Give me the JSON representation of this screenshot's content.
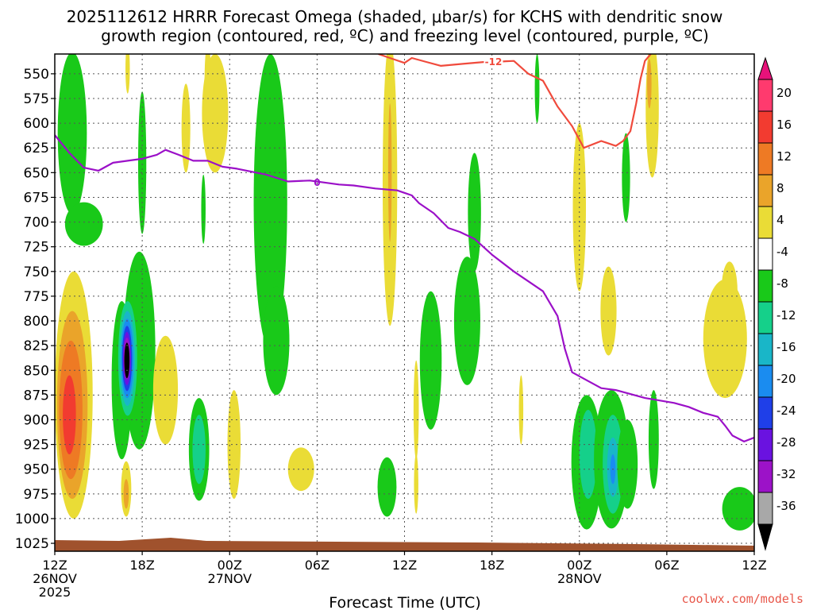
{
  "chart_data": {
    "type": "contour",
    "title_line1": "2025112612 HRRR Forecast Omega (shaded, μbar/s) for KCHS with dendritic snow",
    "title_line2": "growth region (contoured, red, ºC) and freezing level (contoured, purple, ºC)",
    "xlabel": "Forecast Time (UTC)",
    "credit": "coolwx.com/models",
    "x_range": [
      0,
      48
    ],
    "y_range": [
      530,
      1033
    ],
    "y_ticks": [
      550,
      575,
      600,
      625,
      650,
      675,
      700,
      725,
      750,
      775,
      800,
      825,
      850,
      875,
      900,
      925,
      950,
      975,
      1000,
      1025
    ],
    "x_ticks": [
      {
        "hour": 0,
        "lines": [
          "12Z",
          "26NOV",
          "2025"
        ]
      },
      {
        "hour": 6,
        "lines": [
          "18Z"
        ]
      },
      {
        "hour": 12,
        "lines": [
          "00Z",
          "27NOV"
        ]
      },
      {
        "hour": 18,
        "lines": [
          "06Z"
        ]
      },
      {
        "hour": 24,
        "lines": [
          "12Z"
        ]
      },
      {
        "hour": 30,
        "lines": [
          "18Z"
        ]
      },
      {
        "hour": 36,
        "lines": [
          "00Z",
          "28NOV"
        ]
      },
      {
        "hour": 42,
        "lines": [
          "06Z"
        ]
      },
      {
        "hour": 48,
        "lines": [
          "12Z"
        ]
      }
    ],
    "colorbar": {
      "labels": [
        "20",
        "16",
        "12",
        "8",
        "4",
        "-4",
        "-8",
        "-12",
        "-16",
        "-20",
        "-24",
        "-28",
        "-32",
        "-36"
      ],
      "colors": [
        "#ff3a6e",
        "#f23b30",
        "#ee7a24",
        "#eaa42a",
        "#eadc36",
        "#ffffff",
        "#19c919",
        "#15d08a",
        "#19b6c8",
        "#1a8cf0",
        "#1f3fe8",
        "#6a12e0",
        "#9c12c8",
        "#a8a8a8"
      ],
      "top_color": "#e8127a",
      "bottom_color": "#000000"
    },
    "freezing_level": {
      "label": "0",
      "color": "#9b10c8",
      "points": [
        [
          0,
          612
        ],
        [
          1,
          630
        ],
        [
          2,
          645
        ],
        [
          3,
          648
        ],
        [
          4,
          640
        ],
        [
          5,
          638
        ],
        [
          6,
          636
        ],
        [
          7,
          632
        ],
        [
          7.6,
          627
        ],
        [
          8.5,
          632
        ],
        [
          9.5,
          638
        ],
        [
          10.5,
          638
        ],
        [
          11.5,
          644
        ],
        [
          12.5,
          646
        ],
        [
          14.5,
          652
        ],
        [
          16,
          659
        ],
        [
          17.5,
          658
        ],
        [
          18.5,
          660
        ],
        [
          19.5,
          662
        ],
        [
          20.5,
          663
        ],
        [
          22,
          666
        ],
        [
          23.5,
          668
        ],
        [
          24.5,
          673
        ],
        [
          25,
          681
        ],
        [
          26,
          691
        ],
        [
          27,
          706
        ],
        [
          27.8,
          710
        ],
        [
          28.8,
          717
        ],
        [
          30,
          733
        ],
        [
          31.5,
          750
        ],
        [
          32.5,
          760
        ],
        [
          33.5,
          770
        ],
        [
          34.5,
          795
        ],
        [
          35,
          828
        ],
        [
          35.5,
          852
        ],
        [
          36.5,
          860
        ],
        [
          37.5,
          868
        ],
        [
          38.5,
          870
        ],
        [
          40.5,
          878
        ],
        [
          42.5,
          883
        ],
        [
          43.5,
          887
        ],
        [
          44.5,
          893
        ],
        [
          45.5,
          897
        ],
        [
          46,
          906
        ],
        [
          46.5,
          916
        ],
        [
          47.3,
          922
        ],
        [
          48,
          918
        ]
      ]
    },
    "dgz_contour": {
      "label": "-12",
      "color": "#f04a3c",
      "points": [
        [
          22.2,
          530
        ],
        [
          23,
          534
        ],
        [
          24,
          539
        ],
        [
          24.5,
          534
        ],
        [
          25.5,
          538
        ],
        [
          26.5,
          542
        ],
        [
          28,
          540
        ],
        [
          29.5,
          538
        ],
        [
          30,
          538
        ],
        [
          31.5,
          537
        ],
        [
          32.5,
          550
        ],
        [
          33.5,
          557
        ],
        [
          34.5,
          583
        ],
        [
          35.5,
          603
        ],
        [
          36.3,
          625
        ],
        [
          37.5,
          618
        ],
        [
          38.5,
          623
        ],
        [
          39,
          618
        ],
        [
          39.5,
          608
        ],
        [
          39.9,
          580
        ],
        [
          40.2,
          555
        ],
        [
          40.5,
          537
        ],
        [
          40.9,
          530
        ]
      ]
    },
    "omega_shading": [
      {
        "level": -4,
        "color": "#19c919",
        "x": 1.2,
        "y": 610,
        "rx": 1.0,
        "ry": 82
      },
      {
        "level": -4,
        "color": "#19c919",
        "x": 2.0,
        "y": 702,
        "rx": 1.3,
        "ry": 22
      },
      {
        "level": -4,
        "color": "#19c919",
        "x": 6.0,
        "y": 640,
        "rx": 0.28,
        "ry": 72
      },
      {
        "level": -4,
        "color": "#19c919",
        "x": 5.8,
        "y": 830,
        "rx": 1.1,
        "ry": 100
      },
      {
        "level": -4,
        "color": "#19c919",
        "x": 4.6,
        "y": 860,
        "rx": 0.7,
        "ry": 80
      },
      {
        "level": -8,
        "color": "#15d08a",
        "x": 5.0,
        "y": 838,
        "rx": 0.65,
        "ry": 58
      },
      {
        "level": -12,
        "color": "#19b6c8",
        "x": 4.98,
        "y": 838,
        "rx": 0.52,
        "ry": 48
      },
      {
        "level": -16,
        "color": "#1a8cf0",
        "x": 4.97,
        "y": 838,
        "rx": 0.42,
        "ry": 40
      },
      {
        "level": -24,
        "color": "#1f3fe8",
        "x": 4.96,
        "y": 838,
        "rx": 0.34,
        "ry": 33
      },
      {
        "level": -28,
        "color": "#6a12e0",
        "x": 4.95,
        "y": 838,
        "rx": 0.27,
        "ry": 27
      },
      {
        "level": -32,
        "color": "#9c12c8",
        "x": 4.95,
        "y": 838,
        "rx": 0.22,
        "ry": 21
      },
      {
        "level": -36,
        "color": "#000000",
        "x": 4.95,
        "y": 840,
        "rx": 0.18,
        "ry": 18
      },
      {
        "level": -4,
        "color": "#19c919",
        "x": 10.2,
        "y": 687,
        "rx": 0.15,
        "ry": 35
      },
      {
        "level": -4,
        "color": "#19c919",
        "x": 9.9,
        "y": 930,
        "rx": 0.7,
        "ry": 52
      },
      {
        "level": -8,
        "color": "#15d08a",
        "x": 9.9,
        "y": 930,
        "rx": 0.45,
        "ry": 35
      },
      {
        "level": -4,
        "color": "#19c919",
        "x": 14.8,
        "y": 680,
        "rx": 1.15,
        "ry": 150
      },
      {
        "level": -4,
        "color": "#19c919",
        "x": 15.2,
        "y": 820,
        "rx": 0.9,
        "ry": 55
      },
      {
        "level": -4,
        "color": "#19c919",
        "x": 22.8,
        "y": 968,
        "rx": 0.65,
        "ry": 30
      },
      {
        "level": -4,
        "color": "#19c919",
        "x": 25.8,
        "y": 840,
        "rx": 0.75,
        "ry": 70
      },
      {
        "level": -4,
        "color": "#19c919",
        "x": 28.3,
        "y": 800,
        "rx": 0.9,
        "ry": 65
      },
      {
        "level": -4,
        "color": "#19c919",
        "x": 28.8,
        "y": 690,
        "rx": 0.45,
        "ry": 60
      },
      {
        "level": -4,
        "color": "#19c919",
        "x": 33.1,
        "y": 565,
        "rx": 0.16,
        "ry": 35
      },
      {
        "level": -4,
        "color": "#19c919",
        "x": 36.5,
        "y": 943,
        "rx": 1.05,
        "ry": 68
      },
      {
        "level": -8,
        "color": "#15d08a",
        "x": 36.6,
        "y": 935,
        "rx": 0.6,
        "ry": 45
      },
      {
        "level": -4,
        "color": "#19c919",
        "x": 38.2,
        "y": 940,
        "rx": 1.2,
        "ry": 70
      },
      {
        "level": -8,
        "color": "#15d08a",
        "x": 38.3,
        "y": 945,
        "rx": 0.7,
        "ry": 50
      },
      {
        "level": -12,
        "color": "#19b6c8",
        "x": 38.3,
        "y": 948,
        "rx": 0.4,
        "ry": 30
      },
      {
        "level": -16,
        "color": "#1a8cf0",
        "x": 38.3,
        "y": 950,
        "rx": 0.18,
        "ry": 15
      },
      {
        "level": -4,
        "color": "#19c919",
        "x": 39.3,
        "y": 945,
        "rx": 0.7,
        "ry": 45
      },
      {
        "level": -4,
        "color": "#19c919",
        "x": 41.1,
        "y": 920,
        "rx": 0.35,
        "ry": 50
      },
      {
        "level": -4,
        "color": "#19c919",
        "x": 39.2,
        "y": 655,
        "rx": 0.28,
        "ry": 45
      },
      {
        "level": -4,
        "color": "#19c919",
        "x": 47.0,
        "y": 990,
        "rx": 1.2,
        "ry": 22
      },
      {
        "level": 4,
        "color": "#eadc36",
        "x": 1.3,
        "y": 875,
        "rx": 1.3,
        "ry": 125
      },
      {
        "level": 8,
        "color": "#eaa42a",
        "x": 1.2,
        "y": 885,
        "rx": 1.05,
        "ry": 95
      },
      {
        "level": 12,
        "color": "#ee7a24",
        "x": 1.1,
        "y": 890,
        "rx": 0.8,
        "ry": 70
      },
      {
        "level": 16,
        "color": "#f23b30",
        "x": 1.0,
        "y": 895,
        "rx": 0.45,
        "ry": 40
      },
      {
        "level": 4,
        "color": "#eadc36",
        "x": 4.9,
        "y": 970,
        "rx": 0.35,
        "ry": 28
      },
      {
        "level": 8,
        "color": "#eaa42a",
        "x": 4.9,
        "y": 975,
        "rx": 0.18,
        "ry": 15
      },
      {
        "level": 4,
        "color": "#eadc36",
        "x": 5.0,
        "y": 545,
        "rx": 0.15,
        "ry": 25
      },
      {
        "level": 4,
        "color": "#eadc36",
        "x": 7.6,
        "y": 870,
        "rx": 0.85,
        "ry": 55
      },
      {
        "level": 4,
        "color": "#eadc36",
        "x": 9.0,
        "y": 605,
        "rx": 0.3,
        "ry": 45
      },
      {
        "level": 4,
        "color": "#eadc36",
        "x": 10.5,
        "y": 555,
        "rx": 0.22,
        "ry": 35
      },
      {
        "level": 4,
        "color": "#eadc36",
        "x": 11.0,
        "y": 590,
        "rx": 0.9,
        "ry": 60
      },
      {
        "level": 4,
        "color": "#eadc36",
        "x": 12.3,
        "y": 925,
        "rx": 0.45,
        "ry": 55
      },
      {
        "level": 4,
        "color": "#eadc36",
        "x": 16.9,
        "y": 950,
        "rx": 0.9,
        "ry": 22
      },
      {
        "level": 4,
        "color": "#eadc36",
        "x": 23.0,
        "y": 660,
        "rx": 0.5,
        "ry": 145
      },
      {
        "level": 8,
        "color": "#eaa42a",
        "x": 23.0,
        "y": 650,
        "rx": 0.12,
        "ry": 70
      },
      {
        "level": 4,
        "color": "#eadc36",
        "x": 24.8,
        "y": 890,
        "rx": 0.18,
        "ry": 50
      },
      {
        "level": 4,
        "color": "#eadc36",
        "x": 24.8,
        "y": 965,
        "rx": 0.15,
        "ry": 30
      },
      {
        "level": 4,
        "color": "#eadc36",
        "x": 32.0,
        "y": 890,
        "rx": 0.15,
        "ry": 35
      },
      {
        "level": 4,
        "color": "#eadc36",
        "x": 36.0,
        "y": 685,
        "rx": 0.45,
        "ry": 85
      },
      {
        "level": 4,
        "color": "#eadc36",
        "x": 38.0,
        "y": 790,
        "rx": 0.55,
        "ry": 45
      },
      {
        "level": 4,
        "color": "#eadc36",
        "x": 41.0,
        "y": 585,
        "rx": 0.45,
        "ry": 70
      },
      {
        "level": 8,
        "color": "#eaa42a",
        "x": 40.8,
        "y": 560,
        "rx": 0.15,
        "ry": 25
      },
      {
        "level": 4,
        "color": "#eadc36",
        "x": 46.0,
        "y": 818,
        "rx": 1.5,
        "ry": 60
      },
      {
        "level": 4,
        "color": "#eadc36",
        "x": 46.3,
        "y": 770,
        "rx": 0.55,
        "ry": 30
      }
    ],
    "terrain_color": "#a0522d"
  }
}
